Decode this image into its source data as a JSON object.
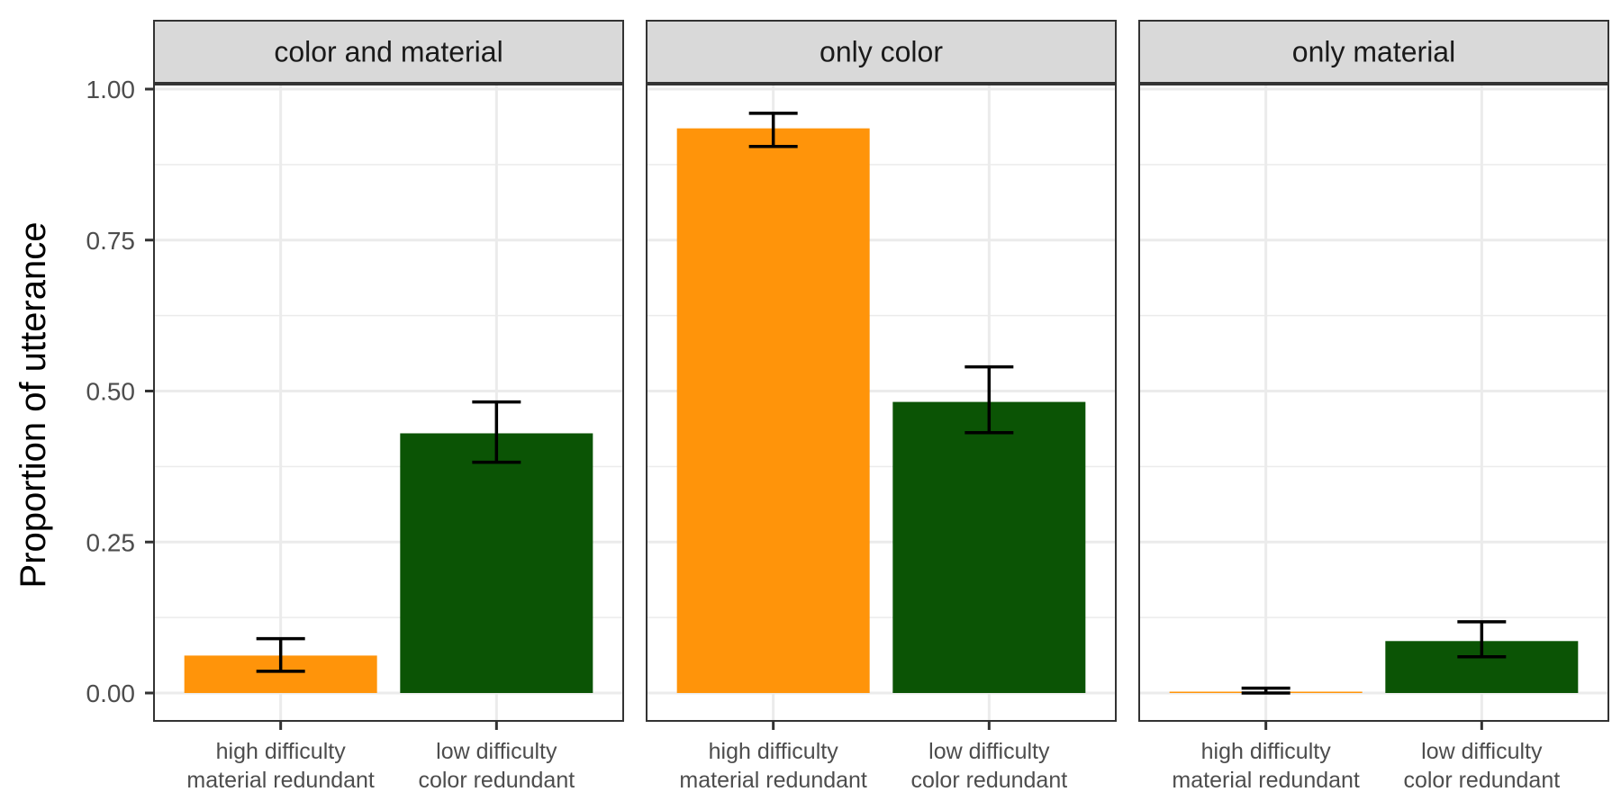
{
  "chart_data": {
    "type": "bar",
    "ylabel": "Proportion of utterance",
    "xlabel": "",
    "ylim": [
      0,
      1.0
    ],
    "yticks": [
      "0.00",
      "0.25",
      "0.50",
      "0.75",
      "1.00"
    ],
    "grid": true,
    "categories": [
      [
        "high difficulty",
        "material redundant"
      ],
      [
        "low difficulty",
        "color redundant"
      ]
    ],
    "colors": [
      "#FF940A",
      "#0B5405"
    ],
    "facets": [
      {
        "name": "color and material",
        "values": [
          0.062,
          0.43
        ],
        "error": [
          [
            0.036,
            0.09
          ],
          [
            0.382,
            0.482
          ]
        ]
      },
      {
        "name": "only color",
        "values": [
          0.935,
          0.482
        ],
        "error": [
          [
            0.905,
            0.96
          ],
          [
            0.431,
            0.54
          ]
        ]
      },
      {
        "name": "only material",
        "values": [
          0.002,
          0.086
        ],
        "error": [
          [
            0.0,
            0.008
          ],
          [
            0.06,
            0.118
          ]
        ]
      }
    ]
  }
}
